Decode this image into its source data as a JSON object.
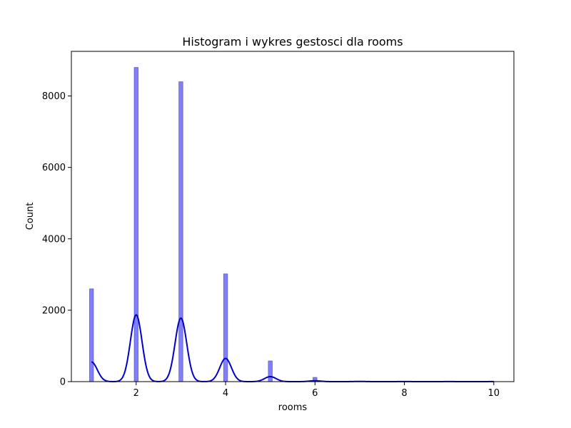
{
  "chart_data": {
    "type": "bar",
    "title": "Histogram i wykres gestosci dla rooms",
    "xlabel": "rooms",
    "ylabel": "Count",
    "xlim": [
      0.55,
      10.45
    ],
    "ylim": [
      0,
      9250
    ],
    "xticks": [
      2,
      4,
      6,
      8,
      10
    ],
    "yticks": [
      0,
      2000,
      4000,
      6000,
      8000
    ],
    "grid": false,
    "legend": "none",
    "bar_color": "#0000ff",
    "line_color": "#0000cd",
    "histogram": {
      "bins": [
        {
          "x": 1,
          "count": 2600
        },
        {
          "x": 2,
          "count": 8800
        },
        {
          "x": 3,
          "count": 8400
        },
        {
          "x": 4,
          "count": 3020
        },
        {
          "x": 5,
          "count": 580
        },
        {
          "x": 6,
          "count": 120
        },
        {
          "x": 7,
          "count": 15
        },
        {
          "x": 8,
          "count": 5
        },
        {
          "x": 9,
          "count": 3
        },
        {
          "x": 10,
          "count": 2
        }
      ]
    },
    "density_curve": {
      "peaks": [
        {
          "x": 1,
          "y": 550
        },
        {
          "x": 2,
          "y": 1870
        },
        {
          "x": 3,
          "y": 1780
        },
        {
          "x": 4,
          "y": 650
        },
        {
          "x": 5,
          "y": 140
        },
        {
          "x": 6,
          "y": 25
        },
        {
          "x": 7,
          "y": 6
        },
        {
          "x": 8,
          "y": 3
        },
        {
          "x": 9,
          "y": 2
        },
        {
          "x": 10,
          "y": 2
        }
      ],
      "bandwidth": 0.13
    }
  }
}
